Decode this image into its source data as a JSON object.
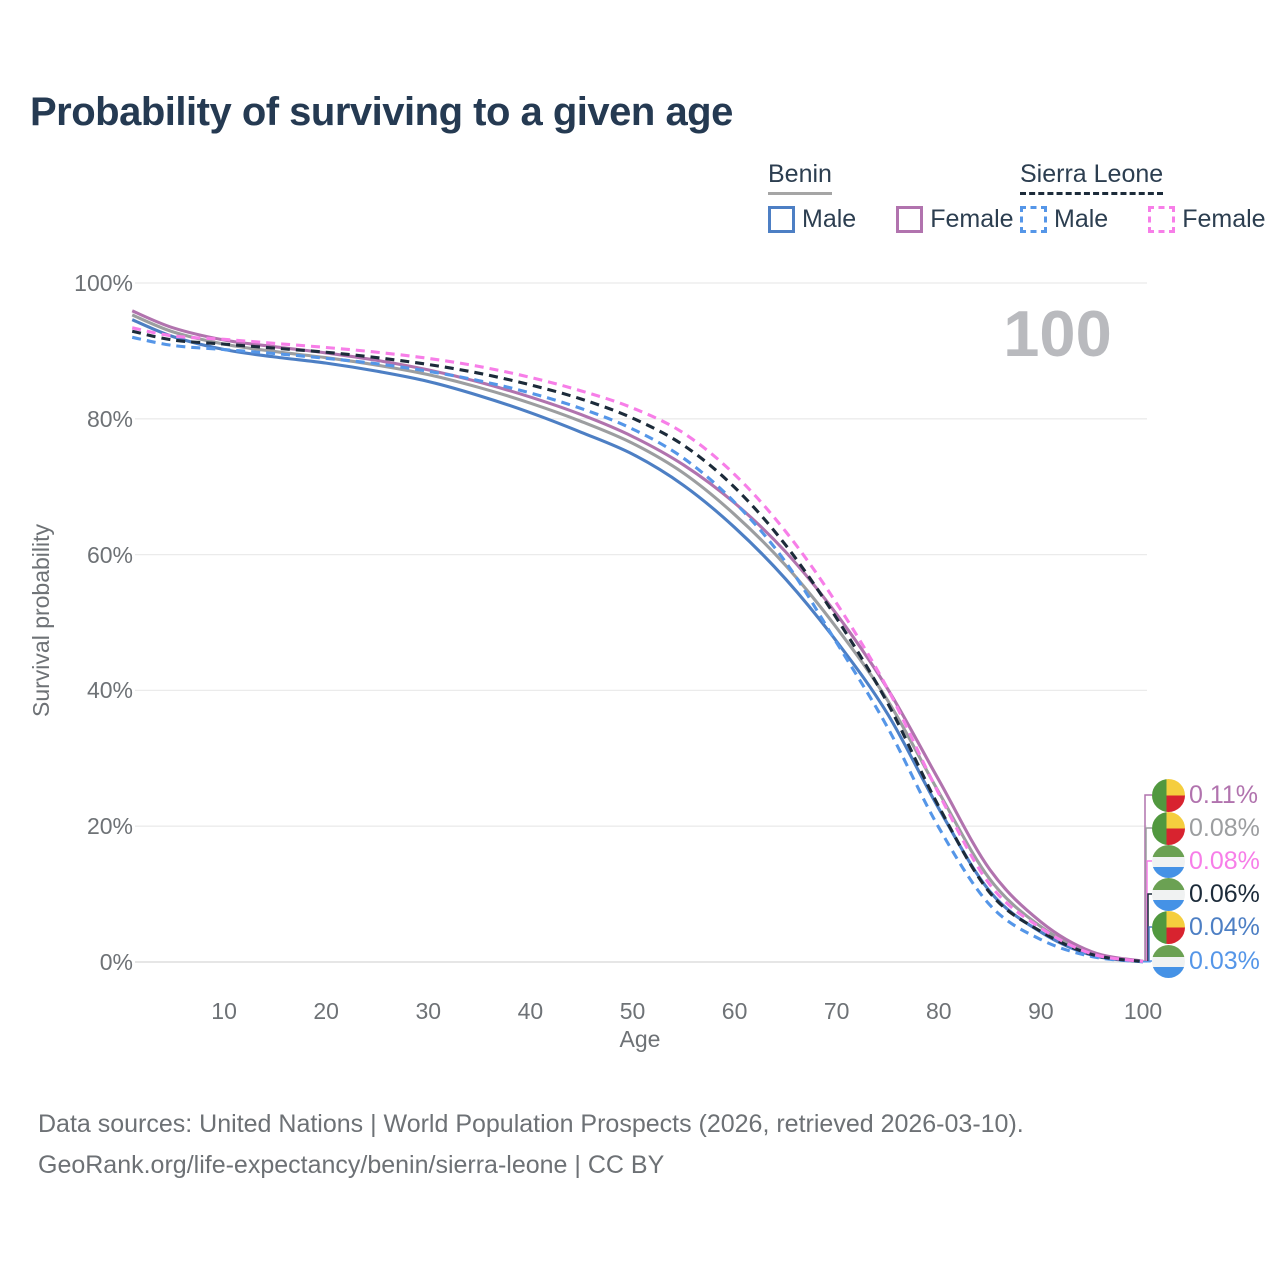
{
  "title": "Probability of surviving to a given age",
  "big_age_label": "100",
  "axes": {
    "x_label": "Age",
    "y_label": "Survival probability",
    "x_ticks": [
      10,
      20,
      30,
      40,
      50,
      60,
      70,
      80,
      90,
      100
    ],
    "y_ticks": [
      {
        "pct": 0,
        "label": "0%"
      },
      {
        "pct": 20,
        "label": "20%"
      },
      {
        "pct": 40,
        "label": "40%"
      },
      {
        "pct": 60,
        "label": "60%"
      },
      {
        "pct": 80,
        "label": "80%"
      },
      {
        "pct": 100,
        "label": "100%"
      }
    ]
  },
  "colors": {
    "title_text": "#253a52",
    "axis_text": "#6e7276",
    "grid": "#ebebeb",
    "grid_zero": "#d7d7d7",
    "big_label": "#b9babe",
    "benin_male": "#4d7fc4",
    "benin_total": "#9c9ea0",
    "benin_female": "#b173ae",
    "sl_male": "#5596e8",
    "sl_total": "#1c2b3a",
    "sl_female": "#f77ee8"
  },
  "legend": {
    "groups": [
      {
        "label": "Benin",
        "line_style": "solid",
        "underline_color": "#a5a5a5",
        "items": [
          {
            "label": "Male",
            "color": "#4d7fc4"
          },
          {
            "label": "Female",
            "color": "#b173ae"
          }
        ]
      },
      {
        "label": "Sierra Leone",
        "line_style": "dashed",
        "underline_color": "#1c2b3a",
        "items": [
          {
            "label": "Male",
            "color": "#5596e8"
          },
          {
            "label": "Female",
            "color": "#f77ee8"
          }
        ]
      }
    ]
  },
  "chart_data": {
    "type": "line",
    "title": "Probability of surviving to a given age",
    "xlabel": "Age",
    "ylabel": "Survival probability",
    "xlim": [
      0,
      100
    ],
    "ylim": [
      0,
      100
    ],
    "grid": "horizontal",
    "legend_position": "top-right",
    "hover_age": 100,
    "x": [
      1,
      5,
      10,
      15,
      20,
      25,
      30,
      35,
      40,
      45,
      50,
      55,
      60,
      65,
      70,
      75,
      80,
      85,
      90,
      95,
      100
    ],
    "series": [
      {
        "name": "Benin Male",
        "country": "Benin",
        "sex": "Male",
        "color": "#4d7fc4",
        "dash": false,
        "flag": "benin",
        "end_label": "0.04%",
        "values": [
          94.6,
          92.1,
          90.2,
          89.1,
          88.2,
          87.0,
          85.5,
          83.4,
          80.9,
          78.0,
          74.8,
          70.2,
          64.0,
          56.4,
          47.2,
          36.5,
          22.6,
          10.4,
          4.4,
          1.0,
          0.04
        ]
      },
      {
        "name": "Benin Total",
        "country": "Benin",
        "sex": "Both",
        "color": "#9c9ea0",
        "dash": false,
        "flag": "benin",
        "end_label": "0.08%",
        "values": [
          95.3,
          92.8,
          91.0,
          89.9,
          89.0,
          87.9,
          86.5,
          84.6,
          82.3,
          79.6,
          76.4,
          72.0,
          65.9,
          58.4,
          49.2,
          38.5,
          25.0,
          12.2,
          5.2,
          1.3,
          0.08
        ]
      },
      {
        "name": "Benin Female",
        "country": "Benin",
        "sex": "Female",
        "color": "#b173ae",
        "dash": false,
        "flag": "benin",
        "end_label": "0.11%",
        "values": [
          95.9,
          93.4,
          91.6,
          90.6,
          89.7,
          88.6,
          87.2,
          85.4,
          83.2,
          80.6,
          77.4,
          73.2,
          67.6,
          60.4,
          51.2,
          40.2,
          26.8,
          13.6,
          5.9,
          1.5,
          0.11
        ]
      },
      {
        "name": "Sierra Leone Male",
        "country": "Sierra Leone",
        "sex": "Male",
        "color": "#5596e8",
        "dash": true,
        "flag": "sl",
        "end_label": "0.03%",
        "values": [
          92.0,
          90.8,
          90.2,
          89.6,
          88.9,
          88.1,
          87.0,
          85.6,
          83.8,
          81.5,
          78.5,
          74.2,
          67.7,
          58.9,
          47.0,
          34.5,
          19.8,
          8.4,
          3.3,
          0.8,
          0.03
        ]
      },
      {
        "name": "Sierra Leone Total",
        "country": "Sierra Leone",
        "sex": "Both",
        "color": "#1c2b3a",
        "dash": true,
        "flag": "sl",
        "end_label": "0.06%",
        "values": [
          92.9,
          91.6,
          91.0,
          90.4,
          89.8,
          89.0,
          88.0,
          86.7,
          85.0,
          82.9,
          80.1,
          76.1,
          69.9,
          61.4,
          50.6,
          38.1,
          22.9,
          10.2,
          4.5,
          1.1,
          0.06
        ]
      },
      {
        "name": "Sierra Leone Female",
        "country": "Sierra Leone",
        "sex": "Female",
        "color": "#f77ee8",
        "dash": true,
        "flag": "sl",
        "end_label": "0.08%",
        "values": [
          93.4,
          92.2,
          91.7,
          91.1,
          90.5,
          89.8,
          88.9,
          87.7,
          86.1,
          84.1,
          81.6,
          77.9,
          71.8,
          63.4,
          52.8,
          40.2,
          24.8,
          11.4,
          5.0,
          1.2,
          0.08
        ]
      }
    ],
    "end_labels_order": [
      "Benin Female",
      "Benin Total",
      "Sierra Leone Female",
      "Sierra Leone Total",
      "Benin Male",
      "Sierra Leone Male"
    ]
  },
  "footer": {
    "line1": "Data sources: United Nations | World Population Prospects (2026, retrieved 2026-03-10).",
    "line2": "GeoRank.org/life-expectancy/benin/sierra-leone | CC BY"
  }
}
